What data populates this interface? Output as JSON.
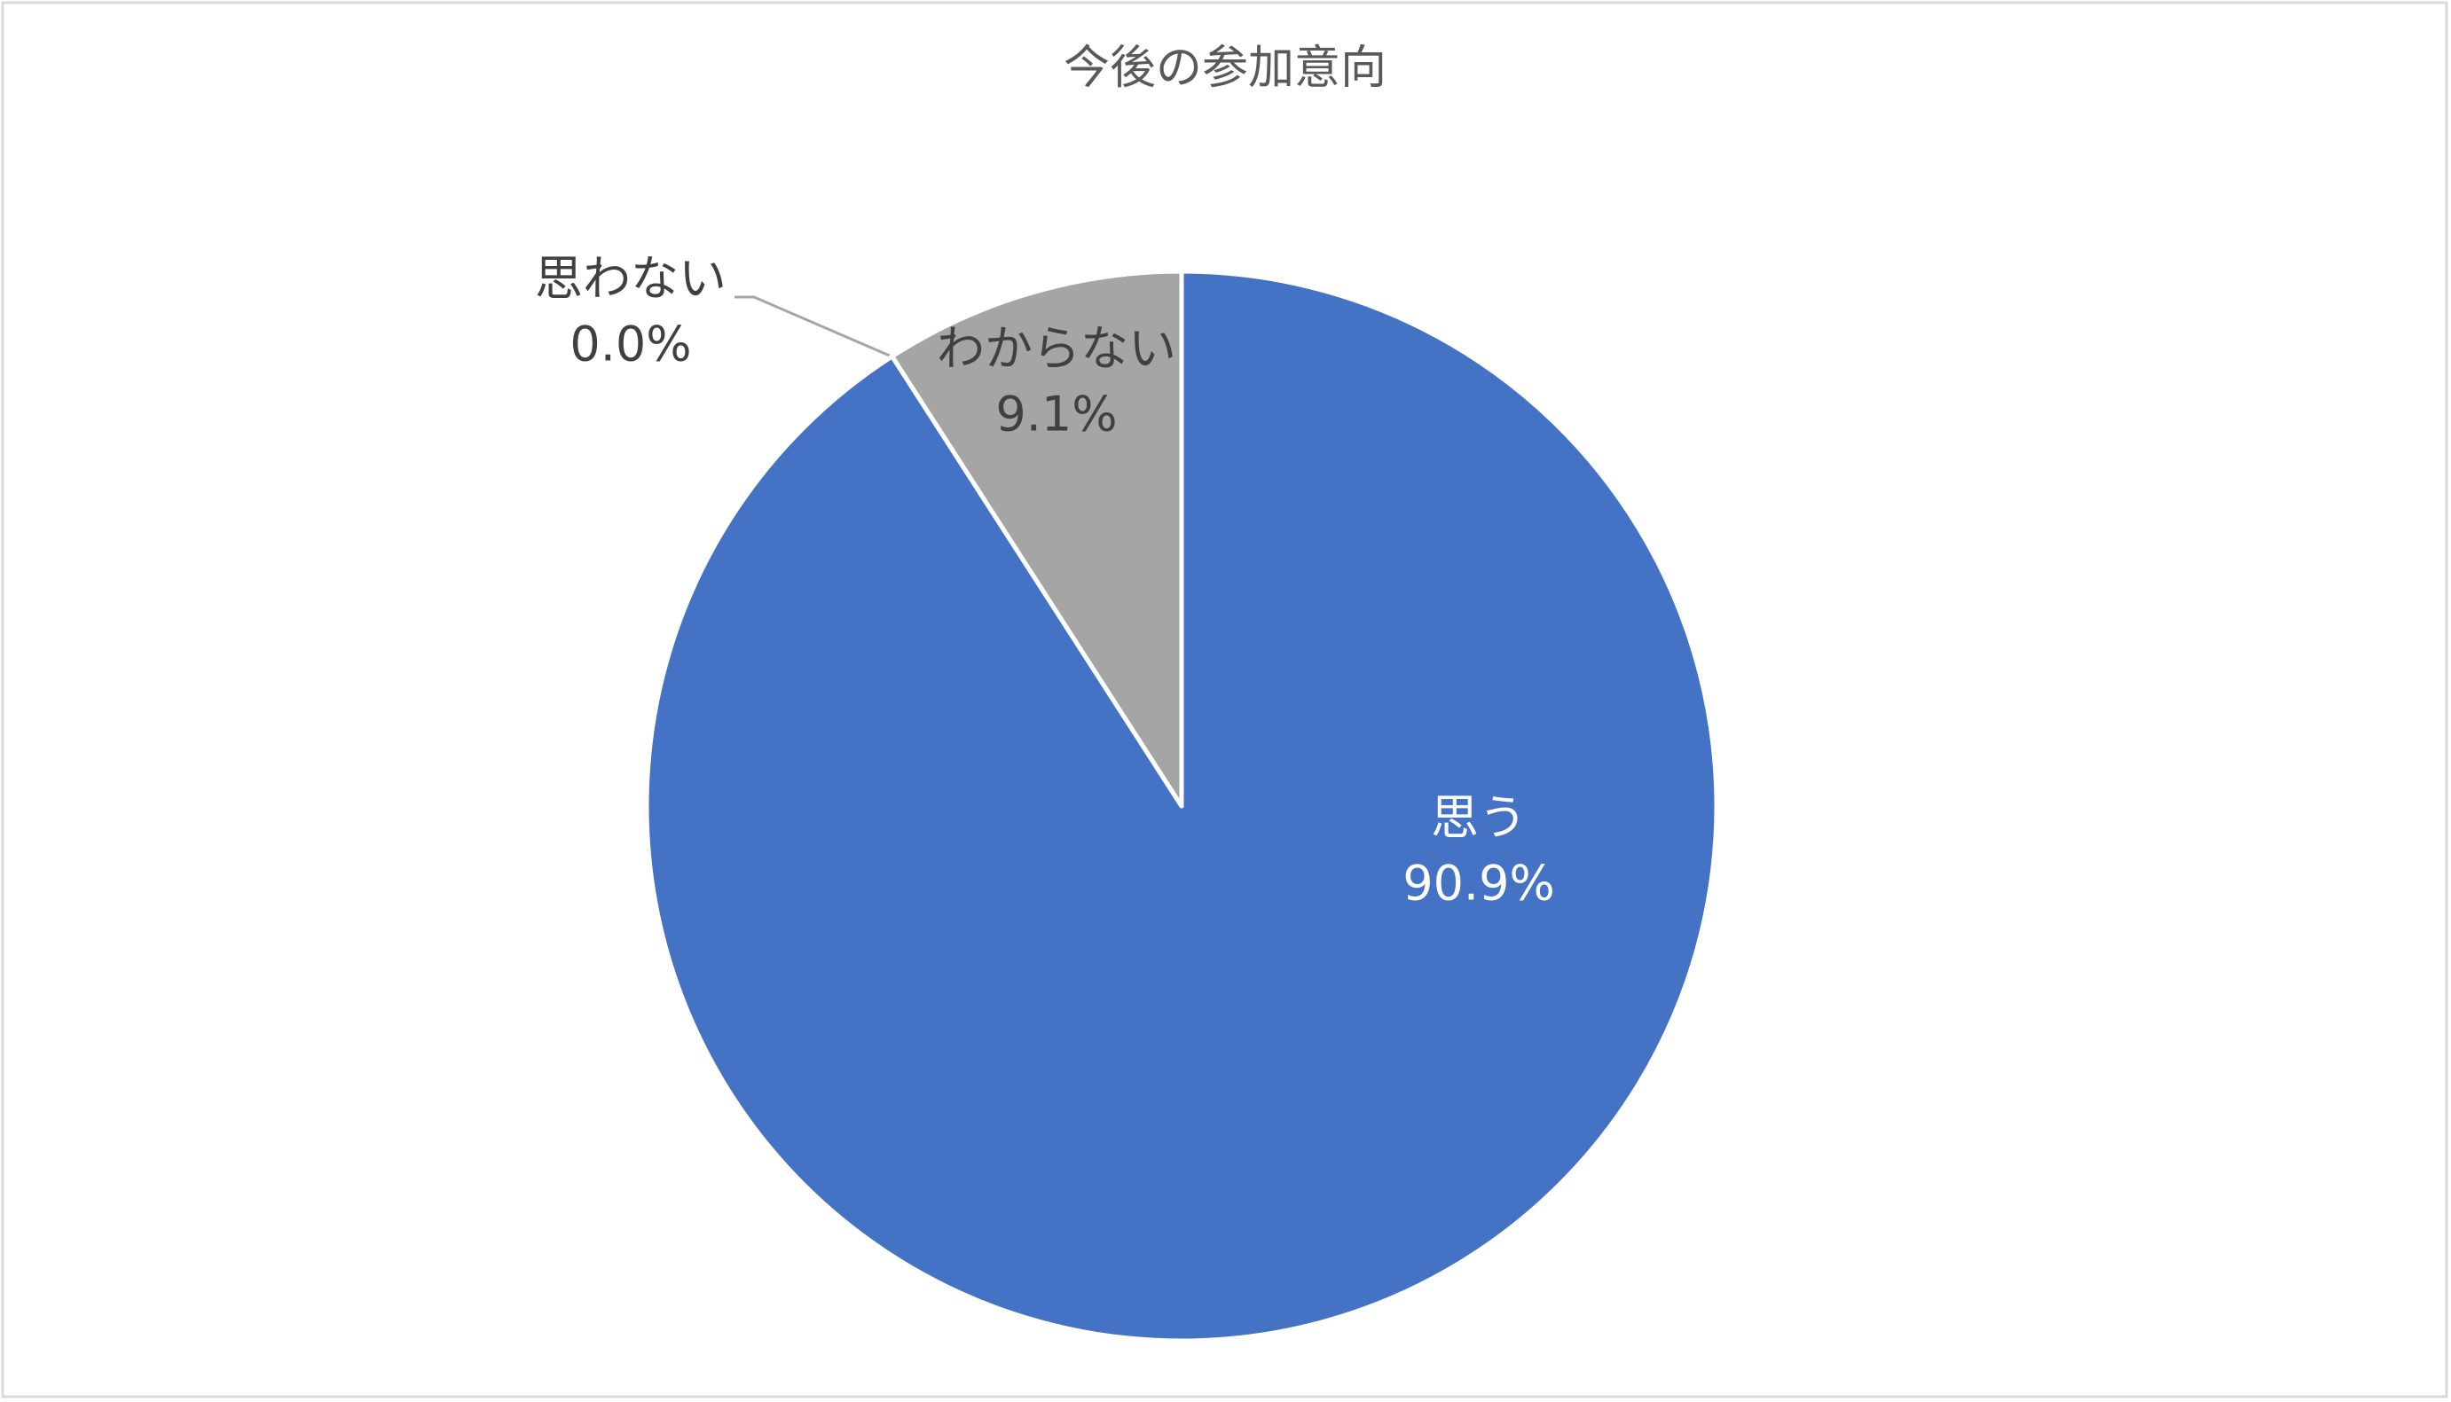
{
  "chart_data": {
    "type": "pie",
    "title": "今後の参加意向",
    "categories": [
      "思う",
      "思わない",
      "わからない"
    ],
    "values": [
      90.9,
      0.0,
      9.1
    ],
    "value_labels": [
      "90.9%",
      "0.0%",
      "9.1%"
    ],
    "colors": [
      "#4472c4",
      "#ed7d31",
      "#a5a5a5"
    ]
  }
}
